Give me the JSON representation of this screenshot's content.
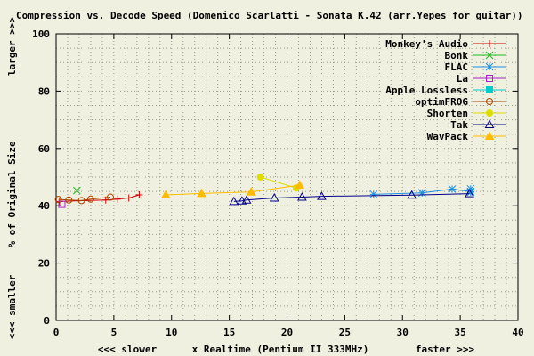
{
  "chart_data": {
    "type": "line",
    "title": "Compression vs. Decode Speed (Domenico Scarlatti - Sonata K.42 (arr.Yepes for guitar))",
    "xlabel": "x Realtime (Pentium II 333MHz)",
    "xlabel_left": "<<< slower",
    "xlabel_right": "faster >>>",
    "ylabel": "% of Original Size",
    "ylabel_top": "larger >>>",
    "ylabel_bottom": "<<< smaller",
    "xlim": [
      0,
      40
    ],
    "ylim": [
      0,
      100
    ],
    "x_ticks": [
      0,
      5,
      10,
      15,
      20,
      25,
      30,
      35,
      40
    ],
    "y_ticks": [
      0,
      20,
      40,
      60,
      80,
      100
    ],
    "grid": true,
    "legend_position": "top-right",
    "series": [
      {
        "name": "Monkey's Audio",
        "color": "#cc0000",
        "marker": "plus",
        "points": [
          [
            0.3,
            41.5
          ],
          [
            2.5,
            41.8
          ],
          [
            4.3,
            42.0
          ],
          [
            5.3,
            42.3
          ],
          [
            6.3,
            42.7
          ],
          [
            7.2,
            43.8
          ]
        ]
      },
      {
        "name": "Bonk",
        "color": "#22bb22",
        "marker": "x",
        "points": [
          [
            1.8,
            45.3
          ]
        ]
      },
      {
        "name": "FLAC",
        "color": "#1e90e0",
        "marker": "star",
        "points": [
          [
            27.5,
            44.0
          ],
          [
            31.7,
            44.5
          ],
          [
            34.3,
            45.8
          ],
          [
            35.9,
            45.0
          ],
          [
            35.9,
            44.7
          ],
          [
            35.9,
            45.9
          ]
        ]
      },
      {
        "name": "La",
        "color": "#aa22cc",
        "marker": "square",
        "points": [
          [
            0.5,
            40.5
          ]
        ]
      },
      {
        "name": "Apple Lossless",
        "color": "#00cccc",
        "marker": "filled-square",
        "points": []
      },
      {
        "name": "optimFROG",
        "color": "#aa4400",
        "marker": "circle",
        "points": [
          [
            0.2,
            42.2
          ],
          [
            1.1,
            42.0
          ],
          [
            2.2,
            41.8
          ],
          [
            3.0,
            42.3
          ],
          [
            4.7,
            43.0
          ]
        ]
      },
      {
        "name": "Shorten",
        "color": "#dddd00",
        "marker": "filled-circle",
        "points": [
          [
            17.7,
            50.0
          ],
          [
            20.8,
            46.2
          ]
        ]
      },
      {
        "name": "Tak",
        "color": "#000088",
        "marker": "triangle",
        "points": [
          [
            15.4,
            41.5
          ],
          [
            16.1,
            41.7
          ],
          [
            16.5,
            42.0
          ],
          [
            18.9,
            42.7
          ],
          [
            21.3,
            43.0
          ],
          [
            23.0,
            43.3
          ],
          [
            30.8,
            43.7
          ],
          [
            35.8,
            44.2
          ]
        ]
      },
      {
        "name": "WavPack",
        "color": "#ffbb00",
        "marker": "filled-triangle",
        "points": [
          [
            9.5,
            43.8
          ],
          [
            12.6,
            44.3
          ],
          [
            16.9,
            44.8
          ],
          [
            21.1,
            47.2
          ]
        ]
      }
    ]
  }
}
